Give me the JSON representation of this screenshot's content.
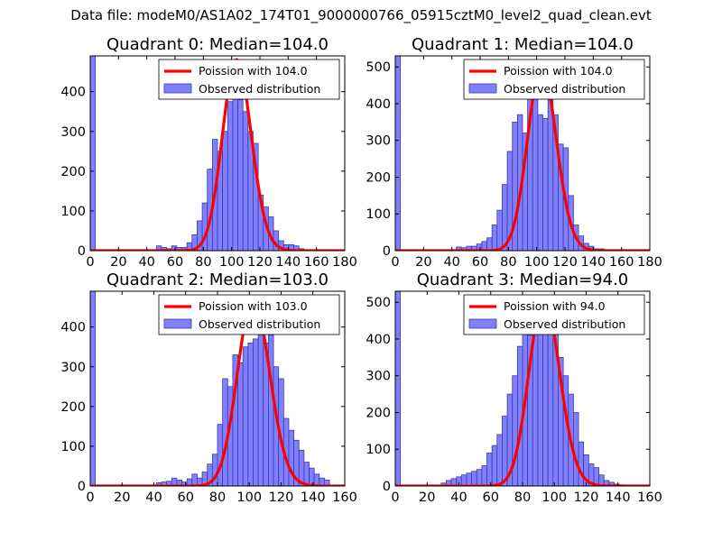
{
  "suptitle": "Data file: modeM0/AS1A02_174T01_9000000766_05915cztM0_level2_quad_clean.evt",
  "colors": {
    "bar_fill": "#8080ff",
    "bar_edge": "#3a3aa8",
    "curve": "#ff0000"
  },
  "legend": {
    "observed_label": "Observed distribution"
  },
  "chart_data": [
    {
      "type": "bar",
      "title": "Quadrant 0: Median=104.0",
      "poisson_label": "Poission with 104.0",
      "poisson_mean": 104.0,
      "xlim": [
        0,
        180
      ],
      "ylim": [
        0,
        490
      ],
      "xticks": [
        0,
        20,
        40,
        60,
        80,
        100,
        120,
        140,
        160,
        180
      ],
      "yticks": [
        0,
        100,
        200,
        300,
        400
      ],
      "bin_width": 3.6,
      "bins_x": [
        0,
        46.8,
        50.4,
        54,
        57.6,
        61.2,
        64.8,
        68.4,
        72,
        75.6,
        79.2,
        82.8,
        86.4,
        90,
        93.6,
        97.2,
        100.8,
        104.4,
        108,
        111.6,
        115.2,
        118.8,
        122.4,
        126,
        129.6,
        133.2,
        136.8,
        140.4,
        144,
        147.6
      ],
      "bins_y": [
        490,
        12,
        8,
        5,
        12,
        8,
        8,
        20,
        40,
        75,
        120,
        205,
        280,
        250,
        300,
        375,
        470,
        380,
        350,
        300,
        270,
        140,
        110,
        85,
        50,
        25,
        15,
        15,
        12,
        5
      ],
      "peak": 480
    },
    {
      "type": "bar",
      "title": "Quadrant 1: Median=104.0",
      "poisson_label": "Poission with 104.0",
      "poisson_mean": 104.0,
      "xlim": [
        0,
        180
      ],
      "ylim": [
        0,
        530
      ],
      "xticks": [
        0,
        20,
        40,
        60,
        80,
        100,
        120,
        140,
        160,
        180
      ],
      "yticks": [
        0,
        100,
        200,
        300,
        400,
        500
      ],
      "bin_width": 3.6,
      "bins_x": [
        0,
        43.2,
        46.8,
        50.4,
        54,
        57.6,
        61.2,
        64.8,
        68.4,
        72,
        75.6,
        79.2,
        82.8,
        86.4,
        90,
        93.6,
        97.2,
        100.8,
        104.4,
        108,
        111.6,
        115.2,
        118.8,
        122.4,
        126,
        129.6,
        133.2,
        136.8,
        140.4,
        144
      ],
      "bins_y": [
        530,
        10,
        8,
        12,
        12,
        18,
        25,
        35,
        70,
        110,
        180,
        270,
        350,
        370,
        320,
        420,
        510,
        370,
        360,
        410,
        370,
        290,
        280,
        150,
        70,
        40,
        20,
        12,
        5,
        5
      ],
      "peak": 500
    },
    {
      "type": "bar",
      "title": "Quadrant 2: Median=103.0",
      "poisson_label": "Poission with 103.0",
      "poisson_mean": 103.0,
      "xlim": [
        0,
        160
      ],
      "ylim": [
        0,
        490
      ],
      "xticks": [
        0,
        20,
        40,
        60,
        80,
        100,
        120,
        140,
        160
      ],
      "yticks": [
        0,
        100,
        200,
        300,
        400
      ],
      "bin_width": 3.2,
      "bins_x": [
        0,
        41.6,
        44.8,
        48,
        51.2,
        54.4,
        57.6,
        60.8,
        64,
        67.2,
        70.4,
        73.6,
        76.8,
        80,
        83.2,
        86.4,
        89.6,
        92.8,
        96,
        99.2,
        102.4,
        105.6,
        108.8,
        112,
        115.2,
        118.4,
        121.6,
        124.8,
        128,
        131.2,
        134.4,
        137.6,
        140.8,
        144,
        147.2
      ],
      "bins_y": [
        490,
        8,
        10,
        12,
        20,
        15,
        10,
        18,
        30,
        20,
        35,
        55,
        80,
        155,
        270,
        250,
        330,
        310,
        350,
        360,
        370,
        380,
        360,
        380,
        300,
        270,
        170,
        140,
        115,
        90,
        60,
        45,
        30,
        20,
        15
      ],
      "peak": 470
    },
    {
      "type": "bar",
      "title": "Quadrant 3: Median=94.0",
      "poisson_label": "Poission with 94.0",
      "poisson_mean": 94.0,
      "xlim": [
        0,
        160
      ],
      "ylim": [
        0,
        530
      ],
      "xticks": [
        0,
        20,
        40,
        60,
        80,
        100,
        120,
        140,
        160
      ],
      "yticks": [
        0,
        100,
        200,
        300,
        400,
        500
      ],
      "bin_width": 3.2,
      "bins_x": [
        0,
        28.8,
        32,
        35.2,
        38.4,
        41.6,
        44.8,
        48,
        51.2,
        54.4,
        57.6,
        60.8,
        64,
        67.2,
        70.4,
        73.6,
        76.8,
        80,
        83.2,
        86.4,
        89.6,
        92.8,
        96,
        99.2,
        102.4,
        105.6,
        108.8,
        112,
        115.2,
        118.4,
        121.6,
        124.8,
        128,
        131.2,
        134.4,
        137.6,
        140.8
      ],
      "bins_y": [
        530,
        8,
        15,
        20,
        25,
        30,
        35,
        40,
        45,
        55,
        90,
        110,
        140,
        190,
        250,
        300,
        380,
        420,
        410,
        440,
        450,
        460,
        470,
        420,
        350,
        300,
        250,
        200,
        120,
        85,
        60,
        50,
        30,
        15,
        10,
        5,
        3
      ],
      "peak": 510
    }
  ]
}
